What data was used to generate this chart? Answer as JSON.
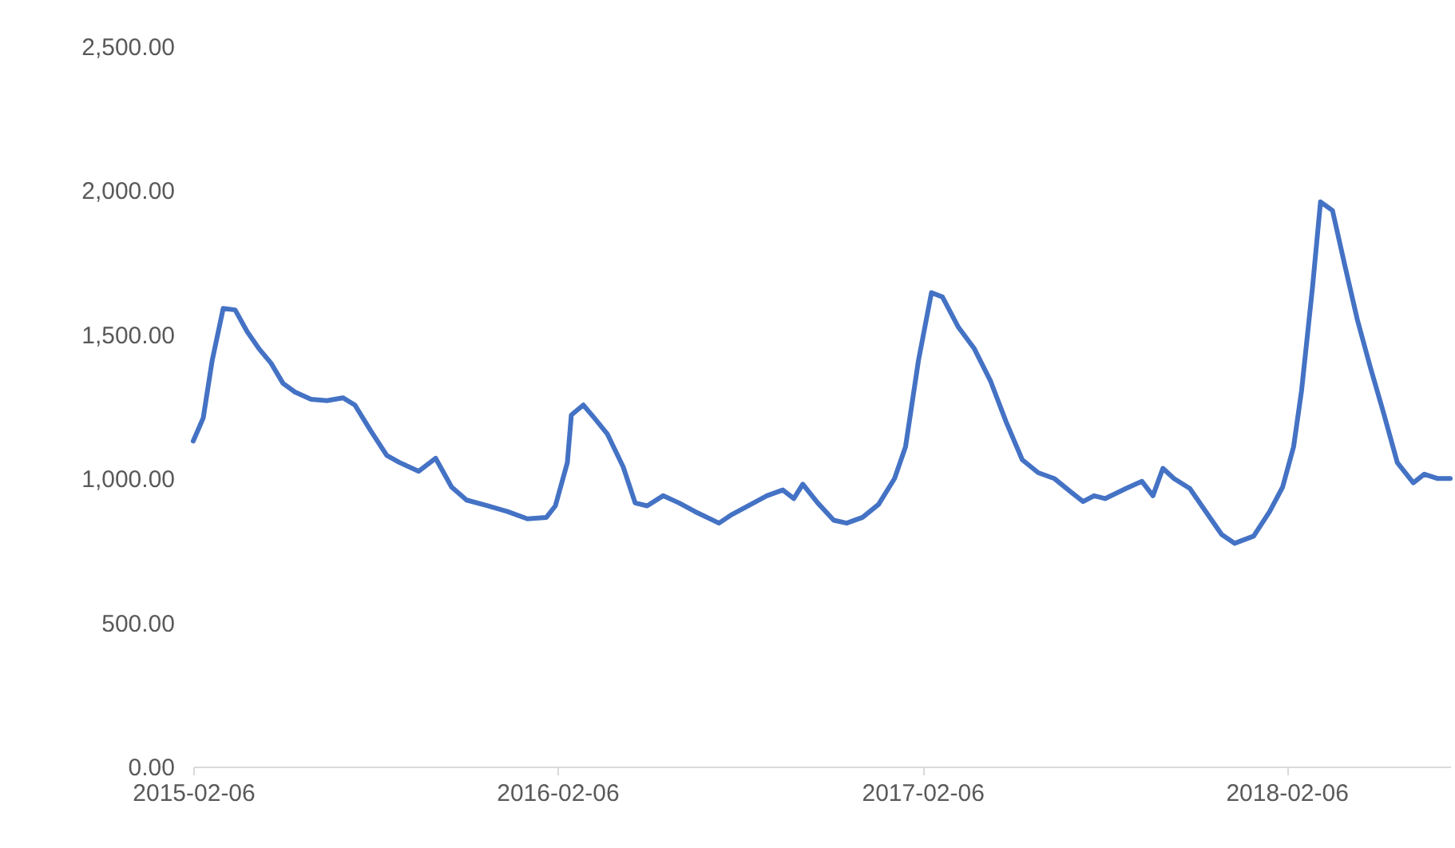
{
  "chart_data": {
    "type": "line",
    "grid": false,
    "x": [
      "2015-02-06",
      "2015-02-16",
      "2015-02-25",
      "2015-03-08",
      "2015-03-20",
      "2015-04-01",
      "2015-04-13",
      "2015-04-25",
      "2015-05-07",
      "2015-05-19",
      "2015-06-04",
      "2015-06-20",
      "2015-07-06",
      "2015-07-18",
      "2015-08-03",
      "2015-08-19",
      "2015-09-01",
      "2015-09-20",
      "2015-10-07",
      "2015-10-23",
      "2015-11-07",
      "2015-11-28",
      "2015-12-18",
      "2016-01-07",
      "2016-01-26",
      "2016-02-04",
      "2016-02-16",
      "2016-02-20",
      "2016-03-03",
      "2016-03-14",
      "2016-03-27",
      "2016-04-12",
      "2016-04-24",
      "2016-05-06",
      "2016-05-22",
      "2016-06-07",
      "2016-06-23",
      "2016-07-17",
      "2016-07-30",
      "2016-08-18",
      "2016-09-03",
      "2016-09-19",
      "2016-09-30",
      "2016-10-09",
      "2016-10-24",
      "2016-11-09",
      "2016-11-22",
      "2016-12-08",
      "2016-12-24",
      "2017-01-09",
      "2017-01-20",
      "2017-02-02",
      "2017-02-15",
      "2017-02-26",
      "2017-03-14",
      "2017-03-30",
      "2017-04-15",
      "2017-05-01",
      "2017-05-17",
      "2017-06-02",
      "2017-06-18",
      "2017-07-04",
      "2017-07-17",
      "2017-07-28",
      "2017-08-08",
      "2017-08-29",
      "2017-09-14",
      "2017-09-25",
      "2017-10-05",
      "2017-10-16",
      "2017-11-01",
      "2017-11-17",
      "2017-12-03",
      "2017-12-16",
      "2018-01-04",
      "2018-01-20",
      "2018-02-02",
      "2018-02-13",
      "2018-02-21",
      "2018-03-04",
      "2018-03-12",
      "2018-03-24",
      "2018-04-05",
      "2018-04-18",
      "2018-05-01",
      "2018-05-14",
      "2018-05-28",
      "2018-06-13",
      "2018-06-24",
      "2018-07-07",
      "2018-07-20"
    ],
    "series": [
      {
        "color": "#4472c4",
        "values": [
          1130,
          1210,
          1410,
          1590,
          1585,
          1510,
          1450,
          1400,
          1330,
          1300,
          1275,
          1270,
          1280,
          1255,
          1165,
          1080,
          1055,
          1025,
          1070,
          970,
          925,
          905,
          885,
          860,
          865,
          905,
          1055,
          1220,
          1255,
          1210,
          1155,
          1040,
          915,
          905,
          940,
          915,
          885,
          845,
          875,
          910,
          940,
          960,
          930,
          980,
          915,
          855,
          845,
          865,
          910,
          1000,
          1110,
          1410,
          1645,
          1630,
          1525,
          1450,
          1340,
          1195,
          1065,
          1020,
          1000,
          955,
          920,
          940,
          930,
          965,
          990,
          940,
          1035,
          1000,
          965,
          885,
          805,
          775,
          800,
          885,
          970,
          1110,
          1305,
          1665,
          1960,
          1930,
          1745,
          1550,
          1385,
          1230,
          1055,
          985,
          1015,
          1000,
          1000
        ]
      }
    ],
    "xlim": [
      "2015-02-06",
      "2018-07-20"
    ],
    "xticks": [
      "2015-02-06",
      "2016-02-06",
      "2017-02-06",
      "2018-02-06"
    ],
    "ylim": [
      0,
      2500
    ],
    "yticks": [
      {
        "value": 0,
        "label": "0.00"
      },
      {
        "value": 500,
        "label": "500.00"
      },
      {
        "value": 1000,
        "label": "1,000.00"
      },
      {
        "value": 1500,
        "label": "1,500.00"
      },
      {
        "value": 2000,
        "label": "2,000.00"
      },
      {
        "value": 2500,
        "label": "2,500.00"
      }
    ]
  }
}
